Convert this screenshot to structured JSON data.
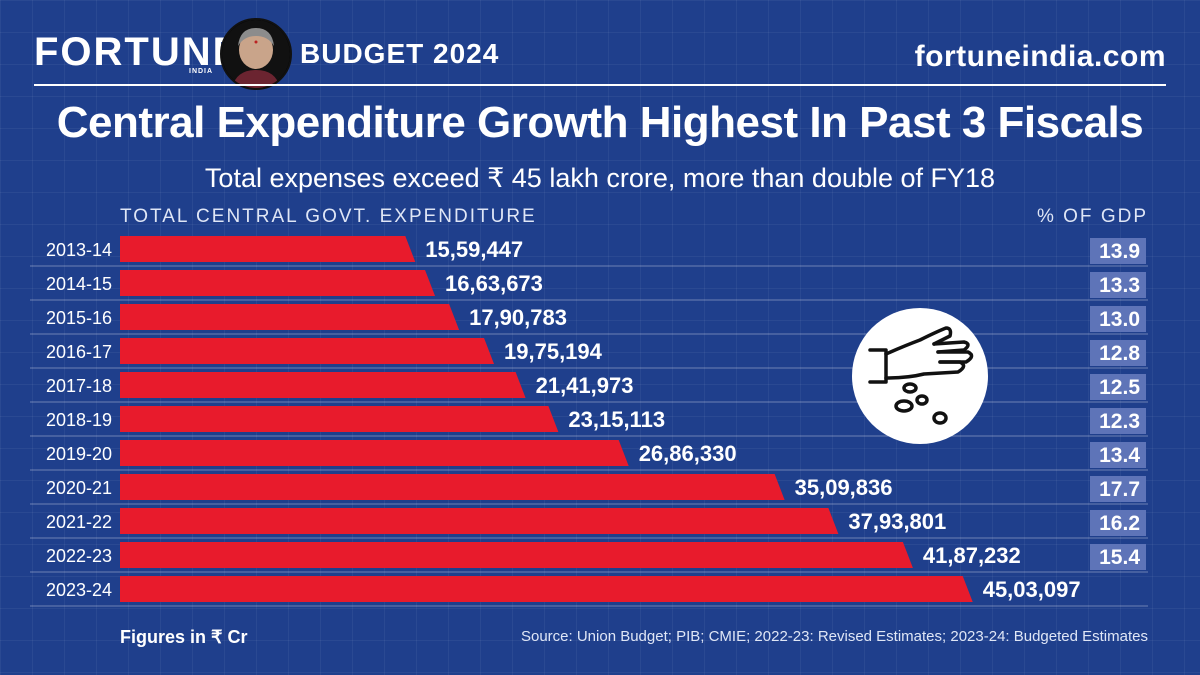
{
  "header": {
    "brand": "FORTUNE",
    "brand_sub": "INDIA",
    "budget_label": "BUDGET 2024",
    "site": "fortuneindia.com"
  },
  "title": "Central Expenditure Growth Highest In Past 3 Fiscals",
  "subtitle": "Total expenses exceed ₹ 45 lakh crore, more than double of FY18",
  "column_labels": {
    "left": "TOTAL CENTRAL GOVT. EXPENDITURE",
    "right": "% OF GDP"
  },
  "footer": {
    "units": "Figures in ₹ Cr",
    "source": "Source: Union Budget; PIB; CMIE; 2022-23: Revised Estimates; 2023-24: Budgeted Estimates"
  },
  "colors": {
    "background": "#1f3f8c",
    "bar": "#e81b2c",
    "gdp_box": "#5e74b8"
  },
  "chart_data": {
    "type": "bar",
    "orientation": "horizontal",
    "title": "Total Central Govt. Expenditure",
    "xlabel": "Figures in ₹ Cr",
    "ylabel": "",
    "categories": [
      "2013-14",
      "2014-15",
      "2015-16",
      "2016-17",
      "2017-18",
      "2018-19",
      "2019-20",
      "2020-21",
      "2021-22",
      "2022-23",
      "2023-24"
    ],
    "series": [
      {
        "name": "Total Central Govt. Expenditure (₹ Cr)",
        "values": [
          1559447,
          1663673,
          1790783,
          1975194,
          2141973,
          2315113,
          2686330,
          3509836,
          3793801,
          4187232,
          4503097
        ],
        "labels": [
          "15,59,447",
          "16,63,673",
          "17,90,783",
          "19,75,194",
          "21,41,973",
          "23,15,113",
          "26,86,330",
          "35,09,836",
          "37,93,801",
          "41,87,232",
          "45,03,097"
        ]
      },
      {
        "name": "% of GDP",
        "values": [
          13.9,
          13.3,
          13.0,
          12.8,
          12.5,
          12.3,
          13.4,
          17.7,
          16.2,
          15.4,
          null
        ],
        "labels": [
          "13.9",
          "13.3",
          "13.0",
          "12.8",
          "12.5",
          "12.3",
          "13.4",
          "17.7",
          "16.2",
          "15.4",
          ""
        ]
      }
    ],
    "xlim": [
      0,
      4700000
    ],
    "legend": "none",
    "grid": false
  }
}
